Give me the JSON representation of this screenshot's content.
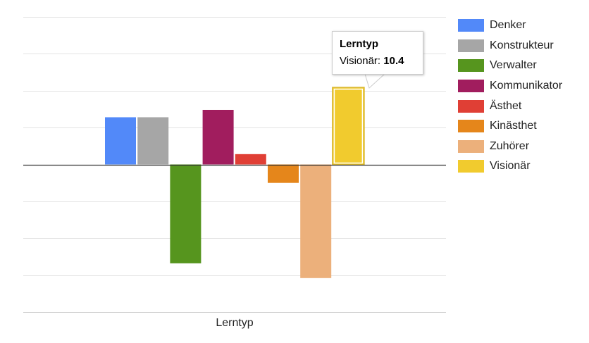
{
  "chart_data": {
    "type": "bar",
    "xlabel": "Lerntyp",
    "ylim": [
      -20,
      20
    ],
    "gridlines": [
      20,
      15,
      10,
      5,
      0,
      -5,
      -10,
      -15,
      -20
    ],
    "series": [
      {
        "name": "Denker",
        "value": 6.4,
        "color": "#5289f9"
      },
      {
        "name": "Konstrukteur",
        "value": 6.4,
        "color": "#a6a6a6"
      },
      {
        "name": "Verwalter",
        "value": -13.4,
        "color": "#56951e"
      },
      {
        "name": "Kommunikator",
        "value": 7.4,
        "color": "#a11d5e"
      },
      {
        "name": "Ästhet",
        "value": 1.4,
        "color": "#e03f35"
      },
      {
        "name": "Kinästhet",
        "value": -2.5,
        "color": "#e5861b"
      },
      {
        "name": "Zuhörer",
        "value": -15.4,
        "color": "#ecb07b"
      },
      {
        "name": "Visionär",
        "value": 10.4,
        "color": "#f1cb2e"
      }
    ],
    "highlighted": "Visionär"
  },
  "tooltip": {
    "title": "Lerntyp",
    "label": "Visionär:",
    "value": "10.4"
  }
}
